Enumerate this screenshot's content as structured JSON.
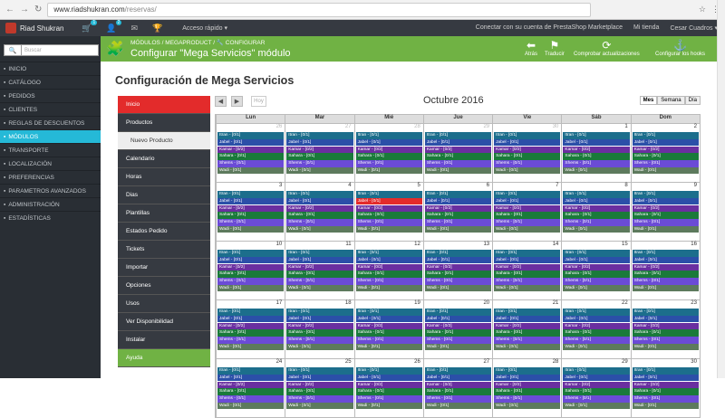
{
  "browser": {
    "url_host": "www.riadshukran.com",
    "url_path": "/reservas/"
  },
  "topbar": {
    "brand": "Riad Shukran",
    "badge1": "1",
    "badge2": "2",
    "quick": "Acceso rápido ▾",
    "connect": "Conectar con su cuenta de PrestaShop Marketplace",
    "shop": "Mi tienda",
    "user": "Cesar Cuadros ▾"
  },
  "sidebar": {
    "search_placeholder": "Buscar",
    "items": [
      "INICIO",
      "CATÁLOGO",
      "PEDIDOS",
      "CLIENTES",
      "REGLAS DE DESCUENTOS",
      "MÓDULOS",
      "TRANSPORTE",
      "LOCALIZACIÓN",
      "PREFERENCIAS",
      "PARAMETROS AVANZADOS",
      "ADMINISTRACIÓN",
      "ESTADÍSTICAS"
    ],
    "active": 5
  },
  "header": {
    "breadcrumb": "MÓDULOS  /  MEGAPRODUCT  /  🔧 CONFIGURAR",
    "title": "Configurar \"Mega Servicios\" módulo",
    "buttons": [
      "Atrás",
      "Traducir",
      "Comprobar actualizaciones",
      "Configurar los hooks"
    ]
  },
  "page_title": "Configuración de Mega Servicios",
  "left_menu": [
    {
      "label": "Inicio",
      "style": "red"
    },
    {
      "label": "Productos",
      "style": "dark"
    },
    {
      "label": "Nuevo Producto",
      "style": "sub"
    },
    {
      "label": "Calendario",
      "style": "dark"
    },
    {
      "label": "Horas",
      "style": "dark"
    },
    {
      "label": "Dias",
      "style": "dark"
    },
    {
      "label": "Plantillas",
      "style": "dark"
    },
    {
      "label": "Estados Pedido",
      "style": "dark"
    },
    {
      "label": "Tickets",
      "style": "dark"
    },
    {
      "label": "Importar",
      "style": "dark"
    },
    {
      "label": "Opciones",
      "style": "dark"
    },
    {
      "label": "Usos",
      "style": "dark"
    },
    {
      "label": "Ver Disponibilidad",
      "style": "dark"
    },
    {
      "label": "Instalar",
      "style": "dark"
    },
    {
      "label": "Ayuda",
      "style": "green"
    }
  ],
  "calendar": {
    "month": "Octubre 2016",
    "today": "Hoy",
    "views": [
      "Mes",
      "Semana",
      "Día"
    ],
    "days": [
      "Lun",
      "Mar",
      "Mié",
      "Jue",
      "Vie",
      "Sáb",
      "Dom"
    ],
    "weeks": [
      [
        {
          "d": "26",
          "o": true
        },
        {
          "d": "27",
          "o": true
        },
        {
          "d": "28",
          "o": true
        },
        {
          "d": "29",
          "o": true
        },
        {
          "d": "30",
          "o": true
        },
        {
          "d": "1"
        },
        {
          "d": "2"
        }
      ],
      [
        {
          "d": "3"
        },
        {
          "d": "4"
        },
        {
          "d": "5",
          "red": true
        },
        {
          "d": "6"
        },
        {
          "d": "7"
        },
        {
          "d": "8"
        },
        {
          "d": "9"
        }
      ],
      [
        {
          "d": "10"
        },
        {
          "d": "11"
        },
        {
          "d": "12"
        },
        {
          "d": "13"
        },
        {
          "d": "14"
        },
        {
          "d": "15"
        },
        {
          "d": "16"
        }
      ],
      [
        {
          "d": "17"
        },
        {
          "d": "18"
        },
        {
          "d": "19"
        },
        {
          "d": "20"
        },
        {
          "d": "21"
        },
        {
          "d": "22"
        },
        {
          "d": "23"
        }
      ],
      [
        {
          "d": "24"
        },
        {
          "d": "25"
        },
        {
          "d": "26"
        },
        {
          "d": "27"
        },
        {
          "d": "28"
        },
        {
          "d": "29"
        },
        {
          "d": "30"
        }
      ]
    ],
    "events": [
      {
        "label": "Itran - [0/1]",
        "color": "#1c6e8c"
      },
      {
        "label": "Jabel - [0/1]",
        "color": "#2b4fa8"
      },
      {
        "label": "Kamar - [0/2]",
        "color": "#6a2fa0"
      },
      {
        "label": "Sahara - [0/1]",
        "color": "#1a7a3a"
      },
      {
        "label": "Shems - [0/1]",
        "color": "#6b4bd6"
      },
      {
        "label": "Wadi - [0/1]",
        "color": "#5d7a5d"
      }
    ]
  }
}
